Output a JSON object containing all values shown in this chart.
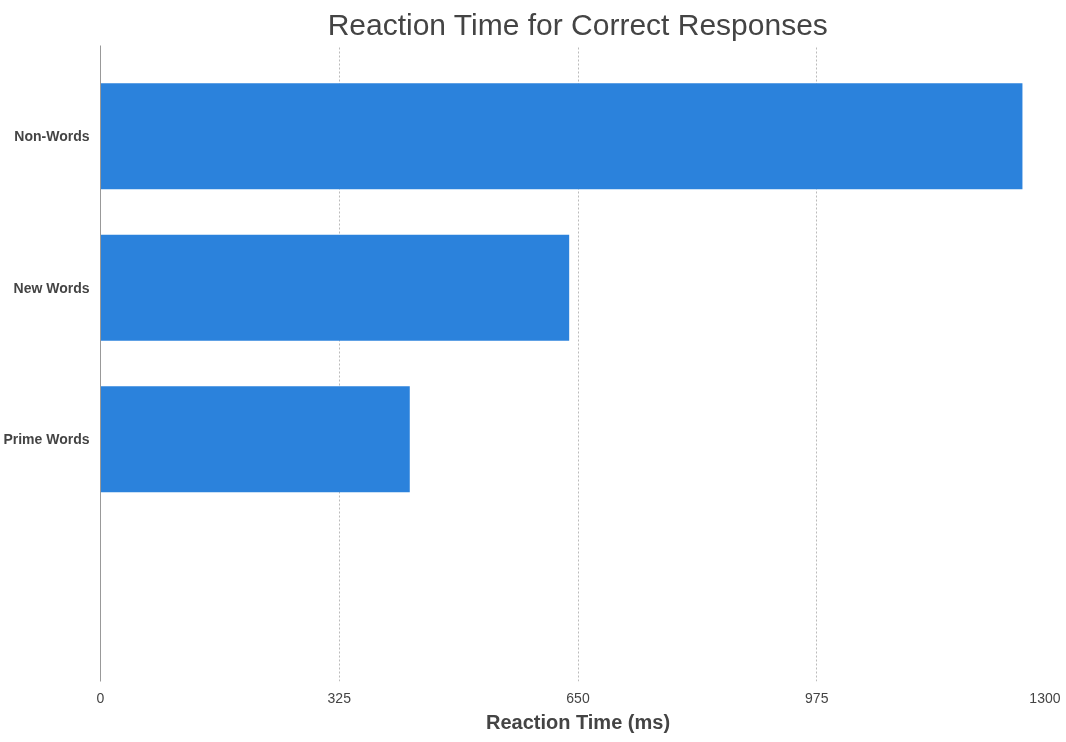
{
  "chart_data": {
    "type": "bar",
    "orientation": "horizontal",
    "title": "Reaction Time for Correct Responses",
    "xlabel": "Reaction Time (ms)",
    "categories": [
      "Non-Words",
      "New Words",
      "Prime Words",
      null
    ],
    "values": [
      1255,
      638,
      421,
      null
    ],
    "color": "#2b82dc",
    "xlim": [
      0,
      1300
    ],
    "xticks": [
      0,
      325,
      650,
      975,
      1300
    ],
    "grid": "x"
  }
}
